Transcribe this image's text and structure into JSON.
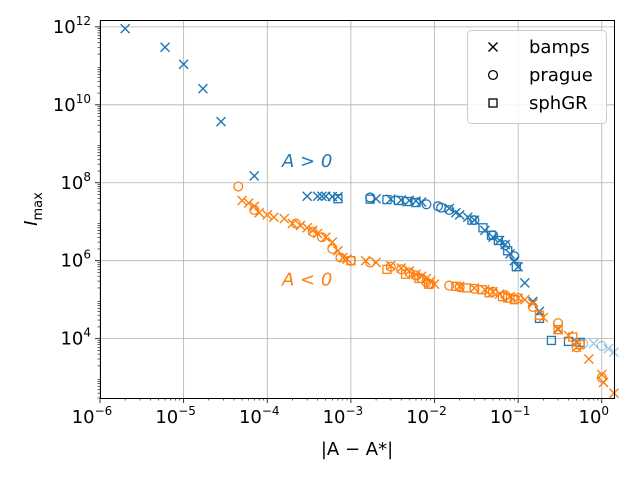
{
  "chart_data": {
    "type": "scatter",
    "xscale": "log",
    "yscale": "log",
    "xlim": [
      1e-06,
      1.4
    ],
    "ylim": [
      300,
      1500000000000.0
    ],
    "xlabel": "|A − A*|",
    "ylabel": "I_max",
    "grid": true,
    "legend_position": "top-right",
    "x_ticks": [
      {
        "value": 1e-06,
        "base": "10",
        "exp": "−6"
      },
      {
        "value": 1e-05,
        "base": "10",
        "exp": "−5"
      },
      {
        "value": 0.0001,
        "base": "10",
        "exp": "−4"
      },
      {
        "value": 0.001,
        "base": "10",
        "exp": "−3"
      },
      {
        "value": 0.01,
        "base": "10",
        "exp": "−2"
      },
      {
        "value": 0.1,
        "base": "10",
        "exp": "−1"
      },
      {
        "value": 1,
        "base": "10",
        "exp": "0"
      }
    ],
    "y_ticks": [
      {
        "value": 10000.0,
        "base": "10",
        "exp": "4"
      },
      {
        "value": 1000000.0,
        "base": "10",
        "exp": "6"
      },
      {
        "value": 100000000.0,
        "base": "10",
        "exp": "8"
      },
      {
        "value": 10000000000.0,
        "base": "10",
        "exp": "10"
      },
      {
        "value": 1000000000000.0,
        "base": "10",
        "exp": "12"
      }
    ],
    "legend": [
      {
        "marker": "x",
        "label": "bamps"
      },
      {
        "marker": "o",
        "label": "prague"
      },
      {
        "marker": "s",
        "label": "sphGR"
      }
    ],
    "annotations": [
      {
        "text": "A > 0",
        "series": "A>0",
        "x": 0.00015,
        "y": 250000000.0
      },
      {
        "text": "A < 0",
        "series": "A<0",
        "x": 0.00015,
        "y": 230000.0
      }
    ],
    "colors": {
      "A>0": "#1f77b4",
      "A<0": "#ff7f0e",
      "faded_alpha": 0.4
    },
    "series": [
      {
        "name": "A>0",
        "code": "bamps",
        "marker": "x",
        "color": "#1f77b4",
        "points": [
          [
            2e-06,
            900000000000.0
          ],
          [
            6e-06,
            300000000000.0
          ],
          [
            1e-05,
            110000000000.0
          ],
          [
            1.7e-05,
            26000000000.0
          ],
          [
            2.8e-05,
            3700000000.0
          ],
          [
            7e-05,
            150000000.0
          ],
          [
            0.0003,
            45000000.0
          ],
          [
            0.0004,
            45000000.0
          ],
          [
            0.00045,
            45000000.0
          ],
          [
            0.0005,
            45000000.0
          ],
          [
            0.0006,
            44000000.0
          ],
          [
            0.0007,
            44000000.0
          ],
          [
            0.002,
            39000000.0
          ],
          [
            0.003,
            38000000.0
          ],
          [
            0.004,
            36000000.0
          ],
          [
            0.005,
            35000000.0
          ],
          [
            0.006,
            34000000.0
          ],
          [
            0.007,
            32000000.0
          ],
          [
            0.015,
            22000000.0
          ],
          [
            0.018,
            17000000.0
          ],
          [
            0.02,
            15000000.0
          ],
          [
            0.025,
            13000000.0
          ],
          [
            0.03,
            11000000.0
          ],
          [
            0.04,
            6000000.0
          ],
          [
            0.05,
            4000000.0
          ],
          [
            0.06,
            3300000.0
          ],
          [
            0.07,
            2600000.0
          ],
          [
            0.08,
            1500000.0
          ],
          [
            0.09,
            1000000.0
          ],
          [
            0.1,
            700000.0
          ],
          [
            0.12,
            270000.0
          ],
          [
            0.15,
            90000.0
          ],
          [
            0.18,
            50000.0
          ],
          [
            0.3,
            18000.0
          ],
          [
            0.5,
            8000.0
          ]
        ]
      },
      {
        "name": "A>0",
        "code": "prague",
        "marker": "o",
        "color": "#1f77b4",
        "points": [
          [
            0.0017,
            42000000.0
          ],
          [
            0.008,
            28000000.0
          ],
          [
            0.011,
            25000000.0
          ],
          [
            0.012,
            23000000.0
          ],
          [
            0.015,
            20000000.0
          ],
          [
            0.03,
            11000000.0
          ],
          [
            0.05,
            4500000.0
          ],
          [
            0.07,
            2500000.0
          ],
          [
            0.09,
            1300000.0
          ]
        ]
      },
      {
        "name": "A>0",
        "code": "sphGR",
        "marker": "s",
        "color": "#1f77b4",
        "points": [
          [
            0.0007,
            39000000.0
          ],
          [
            0.0017,
            38000000.0
          ],
          [
            0.0027,
            37000000.0
          ],
          [
            0.0037,
            35000000.0
          ],
          [
            0.0047,
            33000000.0
          ],
          [
            0.006,
            31000000.0
          ],
          [
            0.028,
            11000000.0
          ],
          [
            0.038,
            7000000.0
          ],
          [
            0.048,
            4500000.0
          ],
          [
            0.058,
            3300000.0
          ],
          [
            0.075,
            1800000.0
          ],
          [
            0.095,
            700000.0
          ],
          [
            0.18,
            33000.0
          ],
          [
            0.25,
            9000.0
          ],
          [
            0.4,
            8500.0
          ],
          [
            0.55,
            8000.0
          ]
        ]
      },
      {
        "name": "A>0 faded",
        "code": "bamps",
        "marker": "x",
        "color": "#1f77b4",
        "alpha": 0.4,
        "points": [
          [
            0.8,
            7500.0
          ],
          [
            1.2,
            5500.0
          ],
          [
            1.4,
            4500.0
          ]
        ]
      },
      {
        "name": "A>0 faded",
        "code": "prague",
        "marker": "o",
        "color": "#1f77b4",
        "alpha": 0.4,
        "points": [
          [
            0.6,
            7500.0
          ],
          [
            1.0,
            6500.0
          ]
        ]
      },
      {
        "name": "A<0",
        "code": "bamps",
        "marker": "x",
        "color": "#ff7f0e",
        "points": [
          [
            5e-05,
            35000000.0
          ],
          [
            6e-05,
            30000000.0
          ],
          [
            7e-05,
            25000000.0
          ],
          [
            8e-05,
            17000000.0
          ],
          [
            0.0001,
            15000000.0
          ],
          [
            0.00012,
            13000000.0
          ],
          [
            0.00016,
            12000000.0
          ],
          [
            0.0002,
            9000000.0
          ],
          [
            0.00025,
            8000000.0
          ],
          [
            0.0003,
            7000000.0
          ],
          [
            0.00035,
            6000000.0
          ],
          [
            0.0004,
            5000000.0
          ],
          [
            0.0005,
            4000000.0
          ],
          [
            0.0006,
            3000000.0
          ],
          [
            0.0007,
            1800000.0
          ],
          [
            0.0008,
            1200000.0
          ],
          [
            0.0009,
            1100000.0
          ],
          [
            0.0015,
            1000000.0
          ],
          [
            0.002,
            900000.0
          ],
          [
            0.003,
            750000.0
          ],
          [
            0.004,
            650000.0
          ],
          [
            0.005,
            550000.0
          ],
          [
            0.006,
            450000.0
          ],
          [
            0.007,
            400000.0
          ],
          [
            0.008,
            350000.0
          ],
          [
            0.009,
            300000.0
          ],
          [
            0.01,
            250000.0
          ],
          [
            0.02,
            220000.0
          ],
          [
            0.03,
            200000.0
          ],
          [
            0.04,
            180000.0
          ],
          [
            0.05,
            160000.0
          ],
          [
            0.06,
            140000.0
          ],
          [
            0.08,
            120000.0
          ],
          [
            0.1,
            110000.0
          ],
          [
            0.12,
            100000.0
          ],
          [
            0.15,
            80000.0
          ],
          [
            0.2,
            35000.0
          ],
          [
            0.3,
            17000.0
          ],
          [
            0.4,
            12000.0
          ],
          [
            0.5,
            6000.0
          ],
          [
            0.7,
            3000.0
          ],
          [
            1.0,
            1200.0
          ],
          [
            1.05,
            750
          ],
          [
            1.4,
            400
          ]
        ]
      },
      {
        "name": "A<0",
        "code": "prague",
        "marker": "o",
        "color": "#ff7f0e",
        "points": [
          [
            4.5e-05,
            80000000.0
          ],
          [
            7e-05,
            20000000.0
          ],
          [
            0.00022,
            9000000.0
          ],
          [
            0.00035,
            5500000.0
          ],
          [
            0.00045,
            4000000.0
          ],
          [
            0.0006,
            2000000.0
          ],
          [
            0.00075,
            1200000.0
          ],
          [
            0.001,
            1000000.0
          ],
          [
            0.0017,
            900000.0
          ],
          [
            0.003,
            700000.0
          ],
          [
            0.004,
            600000.0
          ],
          [
            0.005,
            500000.0
          ],
          [
            0.006,
            420000.0
          ],
          [
            0.007,
            350000.0
          ],
          [
            0.008,
            280000.0
          ],
          [
            0.009,
            250000.0
          ],
          [
            0.015,
            230000.0
          ],
          [
            0.02,
            210000.0
          ],
          [
            0.03,
            190000.0
          ],
          [
            0.05,
            160000.0
          ],
          [
            0.07,
            130000.0
          ],
          [
            0.1,
            110000.0
          ],
          [
            0.15,
            65000.0
          ],
          [
            0.3,
            25000.0
          ],
          [
            0.5,
            6000.0
          ],
          [
            1.0,
            1000.0
          ]
        ]
      },
      {
        "name": "A<0",
        "code": "sphGR",
        "marker": "s",
        "color": "#ff7f0e",
        "points": [
          [
            0.001,
            1000000.0
          ],
          [
            0.0027,
            600000.0
          ],
          [
            0.0045,
            450000.0
          ],
          [
            0.0065,
            350000.0
          ],
          [
            0.0085,
            250000.0
          ],
          [
            0.018,
            220000.0
          ],
          [
            0.024,
            200000.0
          ],
          [
            0.037,
            180000.0
          ],
          [
            0.045,
            150000.0
          ],
          [
            0.065,
            120000.0
          ],
          [
            0.075,
            110000.0
          ],
          [
            0.09,
            100000.0
          ],
          [
            0.18,
            40000.0
          ],
          [
            0.3,
            17000.0
          ],
          [
            0.45,
            11000.0
          ],
          [
            0.55,
            7000.0
          ]
        ]
      }
    ]
  }
}
